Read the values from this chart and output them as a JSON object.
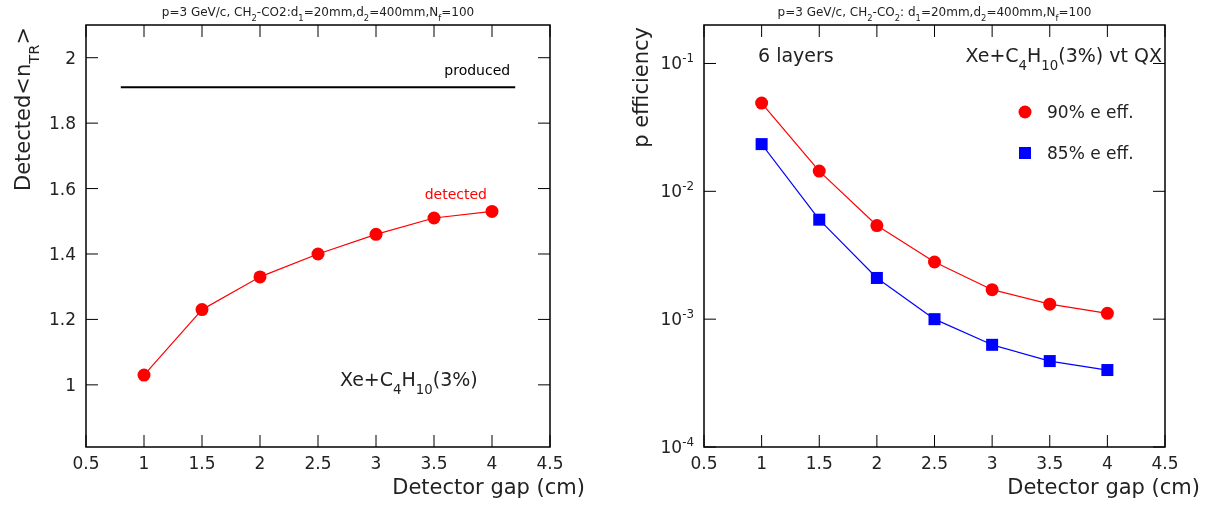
{
  "chart_data": [
    {
      "type": "line",
      "title": "p=3 GeV/c, CH$_{2}$-CO2:d$_{1}$=20mm,d$_{2}$=400mm,N$_{f}$=100",
      "xlabel": "Detector gap (cm)",
      "ylabel": "Detected<n$_{TR}$>",
      "xlim": [
        0.5,
        4.5
      ],
      "xticks": [
        0.5,
        1,
        1.5,
        2,
        2.5,
        3,
        3.5,
        4,
        4.5
      ],
      "ylim": [
        0.81,
        2.1
      ],
      "yticks": [
        1,
        1.2,
        1.4,
        1.6,
        1.8,
        2
      ],
      "series": [
        {
          "name": "produced",
          "color": "#000000",
          "x": [
            0.8,
            4.2
          ],
          "values": [
            1.91,
            1.91
          ],
          "marker": "none"
        },
        {
          "name": "detected",
          "color": "#ff0000",
          "x": [
            1,
            1.5,
            2,
            2.5,
            3,
            3.5,
            4
          ],
          "values": [
            1.03,
            1.23,
            1.33,
            1.4,
            1.46,
            1.51,
            1.53
          ],
          "marker": "circle"
        }
      ],
      "annotations": [
        "Xe+C$_{4}$H$_{10}$(3%)"
      ],
      "legend": false,
      "grid": false
    },
    {
      "type": "line",
      "title": "p=3 GeV/c, CH$_{2}$-CO$_{2}$: d$_{1}$=20mm,d$_{2}$=400mm,N$_{f}$=100",
      "xlabel": "Detector gap (cm)",
      "ylabel": "p efficiency",
      "log": "y",
      "xlim": [
        0.5,
        4.5
      ],
      "xticks": [
        0.5,
        1,
        1.5,
        2,
        2.5,
        3,
        3.5,
        4,
        4.5
      ],
      "ylim": [
        0.0001,
        0.2
      ],
      "yticks": [
        {
          "value": 0.0001,
          "label": "10$^{-4}$"
        },
        {
          "value": 0.001,
          "label": "10$^{-3}$"
        },
        {
          "value": 0.01,
          "label": "10$^{-2}$"
        },
        {
          "value": 0.1,
          "label": "10$^{-1}$"
        }
      ],
      "series": [
        {
          "name": "90% e eff.",
          "color": "#ff0000",
          "x": [
            1,
            1.5,
            2,
            2.5,
            3,
            3.5,
            4
          ],
          "values": [
            0.049,
            0.0144,
            0.0054,
            0.0028,
            0.0017,
            0.00131,
            0.00111
          ],
          "marker": "circle"
        },
        {
          "name": "85% e eff.",
          "color": "#0000ff",
          "x": [
            1,
            1.5,
            2,
            2.5,
            3,
            3.5,
            4
          ],
          "values": [
            0.0234,
            0.006,
            0.0021,
            0.001,
            0.00063,
            0.00047,
            0.0004
          ],
          "marker": "square"
        }
      ],
      "annotations": [
        "6 layers",
        "Xe+C$_{4}$H$_{10}$(3%) vt QX"
      ],
      "legend": "top right",
      "grid": false
    }
  ]
}
